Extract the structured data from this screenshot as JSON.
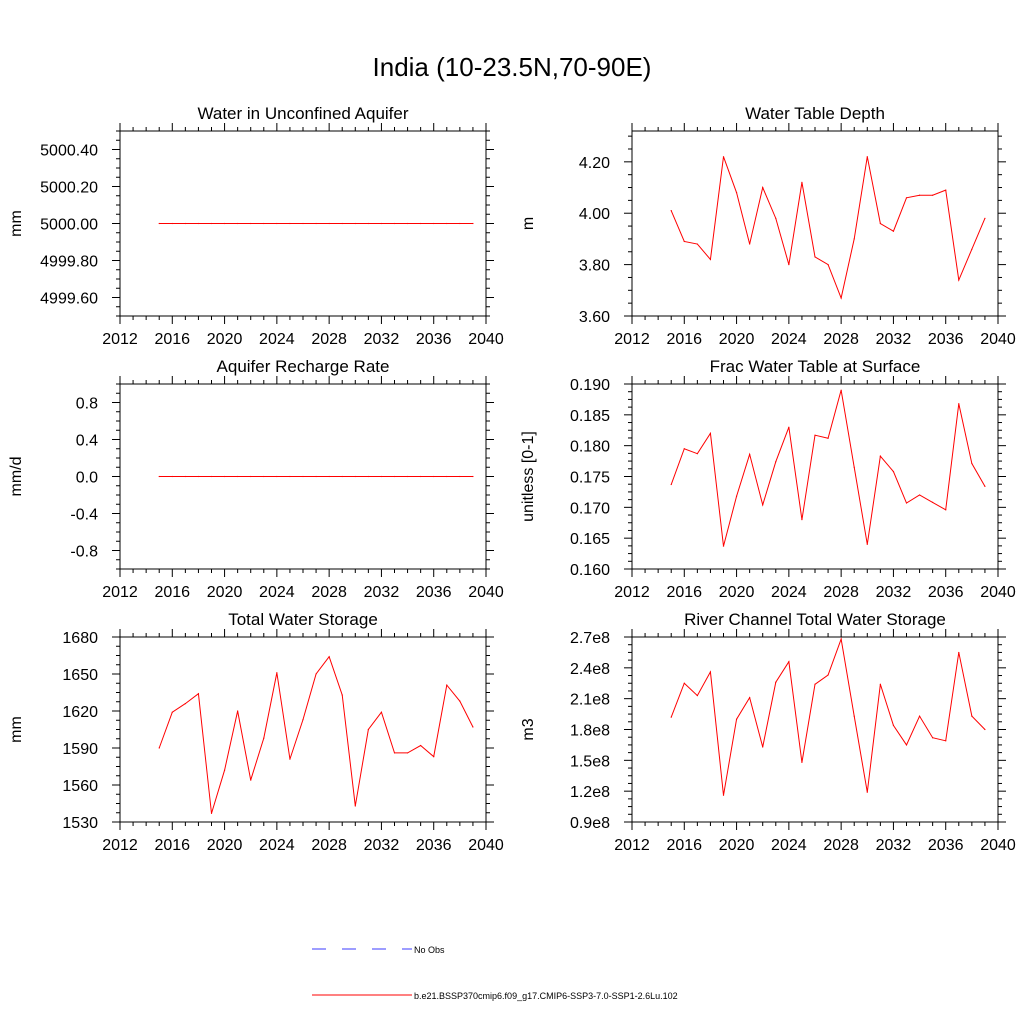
{
  "figure": {
    "title": "India (10-23.5N,70-90E)"
  },
  "colors": {
    "model": "#ff0000",
    "obs": "#3b3bff",
    "axis": "#000000"
  },
  "legend": {
    "obs_label": "No Obs",
    "model_label": "b.e21.BSSP370cmip6.f09_g17.CMIP6-SSP3-7.0-SSP1-2.6Lu.102"
  },
  "chart_data": [
    {
      "type": "line",
      "title": "Water in Unconfined Aquifer",
      "ylabel": "mm",
      "xlim": [
        2012,
        2040
      ],
      "xticks": [
        2012,
        2016,
        2020,
        2024,
        2028,
        2032,
        2036,
        2040
      ],
      "ylim": [
        4999.5,
        5000.5
      ],
      "yticks": [
        4999.6,
        4999.8,
        5000.0,
        5000.2,
        5000.4
      ],
      "ytick_labels": [
        "4999.60",
        "4999.80",
        "5000.00",
        "5000.20",
        "5000.40"
      ],
      "x": [
        2015,
        2016,
        2017,
        2018,
        2019,
        2020,
        2021,
        2022,
        2023,
        2024,
        2025,
        2026,
        2027,
        2028,
        2029,
        2030,
        2031,
        2032,
        2033,
        2034,
        2035,
        2036,
        2037,
        2038,
        2039
      ],
      "values": [
        5000,
        5000,
        5000,
        5000,
        5000,
        5000,
        5000,
        5000,
        5000,
        5000,
        5000,
        5000,
        5000,
        5000,
        5000,
        5000,
        5000,
        5000,
        5000,
        5000,
        5000,
        5000,
        5000,
        5000,
        5000
      ]
    },
    {
      "type": "line",
      "title": "Water Table Depth",
      "ylabel": "m",
      "xlim": [
        2012,
        2040
      ],
      "xticks": [
        2012,
        2016,
        2020,
        2024,
        2028,
        2032,
        2036,
        2040
      ],
      "ylim": [
        3.6,
        4.32
      ],
      "yticks": [
        3.6,
        3.8,
        4.0,
        4.2
      ],
      "ytick_labels": [
        "3.60",
        "3.80",
        "4.00",
        "4.20"
      ],
      "x": [
        2015,
        2016,
        2017,
        2018,
        2019,
        2020,
        2021,
        2022,
        2023,
        2024,
        2025,
        2026,
        2027,
        2028,
        2029,
        2030,
        2031,
        2032,
        2033,
        2034,
        2035,
        2036,
        2037,
        2038,
        2039
      ],
      "values": [
        4.01,
        3.89,
        3.88,
        3.82,
        4.22,
        4.08,
        3.88,
        4.1,
        3.98,
        3.8,
        4.12,
        3.83,
        3.8,
        3.67,
        3.9,
        4.22,
        3.96,
        3.93,
        4.06,
        4.07,
        4.07,
        4.09,
        3.74,
        3.86,
        3.98
      ]
    },
    {
      "type": "line",
      "title": "Aquifer Recharge Rate",
      "ylabel": "mm/d",
      "xlim": [
        2012,
        2040
      ],
      "xticks": [
        2012,
        2016,
        2020,
        2024,
        2028,
        2032,
        2036,
        2040
      ],
      "ylim": [
        -1.0,
        1.0
      ],
      "yticks": [
        -0.8,
        -0.4,
        0.0,
        0.4,
        0.8
      ],
      "ytick_labels": [
        "-0.8",
        "-0.4",
        "0.0",
        "0.4",
        "0.8"
      ],
      "x": [
        2015,
        2016,
        2017,
        2018,
        2019,
        2020,
        2021,
        2022,
        2023,
        2024,
        2025,
        2026,
        2027,
        2028,
        2029,
        2030,
        2031,
        2032,
        2033,
        2034,
        2035,
        2036,
        2037,
        2038,
        2039
      ],
      "values": [
        0,
        0,
        0,
        0,
        0,
        0,
        0,
        0,
        0,
        0,
        0,
        0,
        0,
        0,
        0,
        0,
        0,
        0,
        0,
        0,
        0,
        0,
        0,
        0,
        0
      ]
    },
    {
      "type": "line",
      "title": "Frac Water Table at Surface",
      "ylabel": "unitless [0-1]",
      "xlim": [
        2012,
        2040
      ],
      "xticks": [
        2012,
        2016,
        2020,
        2024,
        2028,
        2032,
        2036,
        2040
      ],
      "ylim": [
        0.16,
        0.19
      ],
      "yticks": [
        0.16,
        0.165,
        0.17,
        0.175,
        0.18,
        0.185,
        0.19
      ],
      "ytick_labels": [
        "0.160",
        "0.165",
        "0.170",
        "0.175",
        "0.180",
        "0.185",
        "0.190"
      ],
      "x": [
        2015,
        2016,
        2017,
        2018,
        2019,
        2020,
        2021,
        2022,
        2023,
        2024,
        2025,
        2026,
        2027,
        2028,
        2029,
        2030,
        2031,
        2032,
        2033,
        2034,
        2035,
        2036,
        2037,
        2038,
        2039
      ],
      "values": [
        0.1737,
        0.1795,
        0.1787,
        0.182,
        0.1637,
        0.1718,
        0.1786,
        0.1704,
        0.1774,
        0.183,
        0.168,
        0.1817,
        0.1812,
        0.189,
        0.1765,
        0.164,
        0.1783,
        0.1758,
        0.1707,
        0.172,
        0.1708,
        0.1696,
        0.1868,
        0.1771,
        0.1734
      ]
    },
    {
      "type": "line",
      "title": "Total Water Storage",
      "ylabel": "mm",
      "xlim": [
        2012,
        2040
      ],
      "xticks": [
        2012,
        2016,
        2020,
        2024,
        2028,
        2032,
        2036,
        2040
      ],
      "ylim": [
        1530,
        1680
      ],
      "yticks": [
        1530,
        1560,
        1590,
        1620,
        1650,
        1680
      ],
      "ytick_labels": [
        "1530",
        "1560",
        "1590",
        "1620",
        "1650",
        "1680"
      ],
      "x": [
        2015,
        2016,
        2017,
        2018,
        2019,
        2020,
        2021,
        2022,
        2023,
        2024,
        2025,
        2026,
        2027,
        2028,
        2029,
        2030,
        2031,
        2032,
        2033,
        2034,
        2035,
        2036,
        2037,
        2038,
        2039
      ],
      "values": [
        1590,
        1619,
        1626,
        1634,
        1537,
        1572,
        1620,
        1564,
        1598,
        1651,
        1581,
        1613,
        1650,
        1664,
        1633,
        1543,
        1605,
        1619,
        1586,
        1586,
        1592,
        1583,
        1641,
        1628,
        1607
      ]
    },
    {
      "type": "line",
      "title": "River Channel Total Water Storage",
      "ylabel": "m3",
      "xlim": [
        2012,
        2040
      ],
      "xticks": [
        2012,
        2016,
        2020,
        2024,
        2028,
        2032,
        2036,
        2040
      ],
      "ylim": [
        90000000.0,
        270000000.0
      ],
      "yticks": [
        90000000.0,
        120000000.0,
        150000000.0,
        180000000.0,
        210000000.0,
        240000000.0,
        270000000.0
      ],
      "ytick_labels": [
        "0.9e8",
        "1.2e8",
        "1.5e8",
        "1.8e8",
        "2.1e8",
        "2.4e8",
        "2.7e8"
      ],
      "x": [
        2015,
        2016,
        2017,
        2018,
        2019,
        2020,
        2021,
        2022,
        2023,
        2024,
        2025,
        2026,
        2027,
        2028,
        2029,
        2030,
        2031,
        2032,
        2033,
        2034,
        2035,
        2036,
        2037,
        2038,
        2039
      ],
      "values": [
        192000000.0,
        225000000.0,
        213000000.0,
        236000000.0,
        116000000.0,
        190000000.0,
        211000000.0,
        163000000.0,
        226000000.0,
        246000000.0,
        148000000.0,
        224000000.0,
        233000000.0,
        268000000.0,
        193000000.0,
        119000000.0,
        224000000.0,
        184000000.0,
        165000000.0,
        193000000.0,
        172000000.0,
        169000000.0,
        255000000.0,
        193000000.0,
        180000000.0
      ]
    }
  ]
}
